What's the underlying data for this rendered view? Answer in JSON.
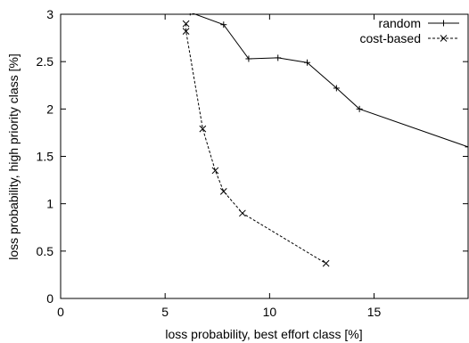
{
  "chart_data": {
    "type": "line",
    "title": "",
    "xlabel": "loss probability, best effort class [%]",
    "ylabel": "loss probability, high priority class [%]",
    "xlim": [
      0,
      19.5
    ],
    "ylim": [
      0,
      3
    ],
    "x_ticks": [
      0,
      5,
      10,
      15
    ],
    "y_ticks": [
      0,
      0.5,
      1,
      1.5,
      2,
      2.5,
      3
    ],
    "x_tick_labels": [
      "0",
      "5",
      "10",
      "15"
    ],
    "y_tick_labels": [
      "0",
      "0.5",
      "1",
      "1.5",
      "2",
      "2.5",
      "3"
    ],
    "grid": false,
    "legend_position": "top-right",
    "series": [
      {
        "name": "random",
        "color": "#000000",
        "line_style": "solid",
        "marker": "plus",
        "x": [
          6.2,
          7.8,
          9.0,
          10.4,
          11.8,
          13.2,
          14.3,
          19.5
        ],
        "y": [
          3.02,
          2.89,
          2.53,
          2.54,
          2.49,
          2.22,
          2.0,
          1.6
        ]
      },
      {
        "name": "cost-based",
        "color": "#000000",
        "line_style": "dashed",
        "marker": "cross",
        "x": [
          6.0,
          6.0,
          6.8,
          7.4,
          7.8,
          8.7,
          12.7
        ],
        "y": [
          2.9,
          2.82,
          1.79,
          1.35,
          1.13,
          0.9,
          0.37
        ]
      }
    ]
  }
}
